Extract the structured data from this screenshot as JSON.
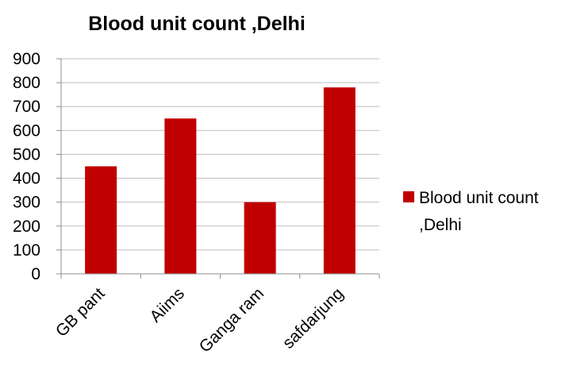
{
  "chart_data": {
    "type": "bar",
    "title": "Blood unit count ,Delhi",
    "categories": [
      "GB pant",
      "Aiims",
      "Ganga ram",
      "safdarjung"
    ],
    "series": [
      {
        "name": "Blood unit count ,Delhi",
        "values": [
          450,
          650,
          300,
          780
        ],
        "color": "#c00000"
      }
    ],
    "ylim": [
      0,
      900
    ],
    "yticks": [
      0,
      100,
      200,
      300,
      400,
      500,
      600,
      700,
      800,
      900
    ],
    "grid": true,
    "legend_position": "right",
    "legend_lines": [
      "Blood unit count",
      ",Delhi"
    ]
  }
}
